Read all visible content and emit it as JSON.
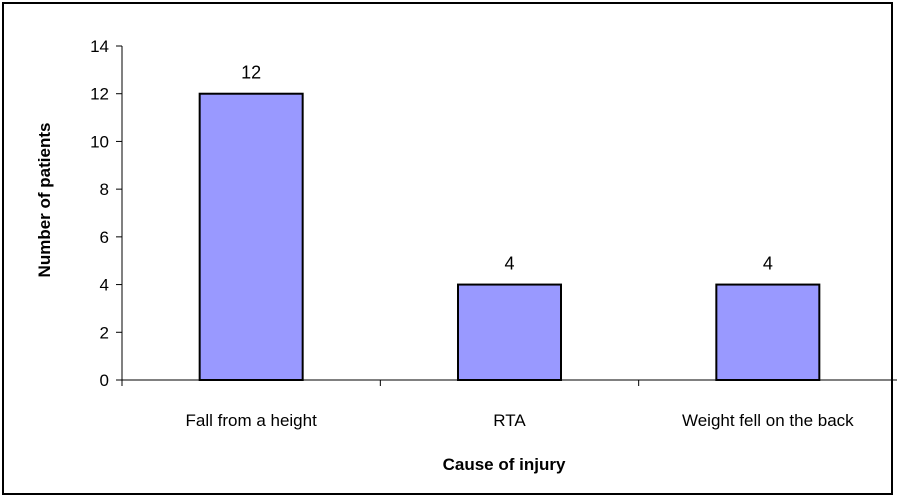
{
  "chart_data": {
    "type": "bar",
    "title": "",
    "xlabel": "Cause of injury",
    "ylabel": "Number of patients",
    "categories": [
      "Fall from a height",
      "RTA",
      "Weight fell on the back"
    ],
    "values": [
      12,
      4,
      4
    ],
    "data_labels": [
      "12",
      "4",
      "4"
    ],
    "ylim": [
      0,
      14
    ],
    "yticks": [
      0,
      2,
      4,
      6,
      8,
      10,
      12,
      14
    ],
    "grid": false,
    "legend": "none",
    "colors": {
      "bar_fill": "#9999ff",
      "bar_stroke": "#000000",
      "axis": "#000000"
    }
  }
}
